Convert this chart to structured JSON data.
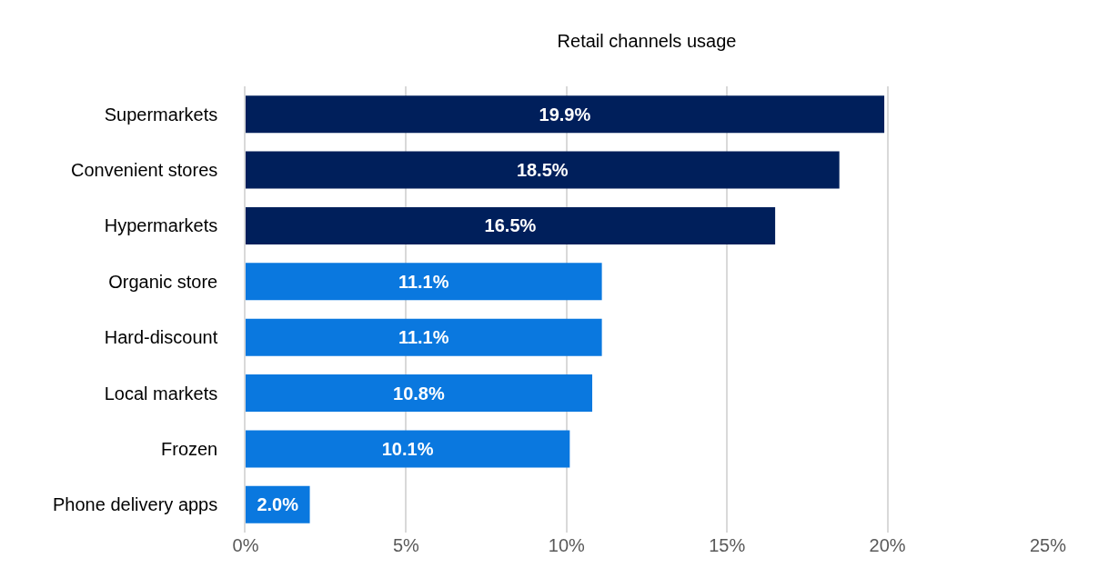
{
  "chart_data": {
    "type": "bar",
    "orientation": "horizontal",
    "title": "Retail channels usage",
    "categories": [
      "Supermarkets",
      "Convenient stores",
      "Hypermarkets",
      "Organic store",
      "Hard-discount",
      "Local markets",
      "Frozen",
      "Phone delivery apps"
    ],
    "values": [
      19.9,
      18.5,
      16.5,
      11.1,
      11.1,
      10.8,
      10.1,
      2.0
    ],
    "value_labels": [
      "19.9%",
      "18.5%",
      "16.5%",
      "11.1%",
      "11.1%",
      "10.8%",
      "10.1%",
      "2.0%"
    ],
    "colors": [
      "#001f5b",
      "#001f5b",
      "#001f5b",
      "#0a78df",
      "#0a78df",
      "#0a78df",
      "#0a78df",
      "#0a78df"
    ],
    "xlim": [
      0,
      25
    ],
    "xticks": [
      {
        "value": 0,
        "label": "0%"
      },
      {
        "value": 5,
        "label": "5%"
      },
      {
        "value": 10,
        "label": "10%"
      },
      {
        "value": 15,
        "label": "15%"
      },
      {
        "value": 20,
        "label": "20%"
      },
      {
        "value": 25,
        "label": "25%"
      }
    ],
    "grid": "x"
  }
}
